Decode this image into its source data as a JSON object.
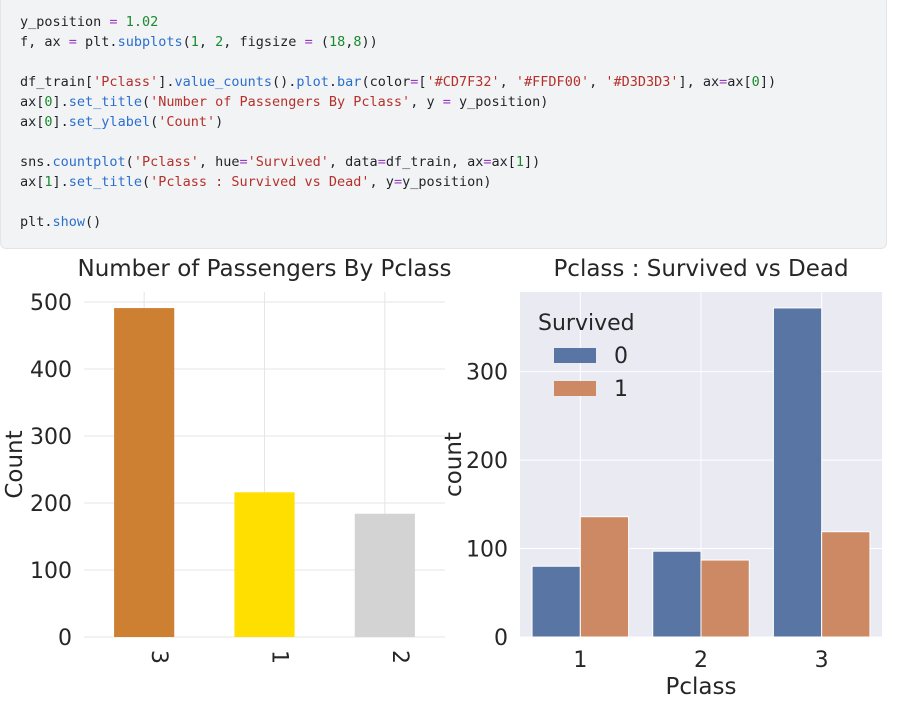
{
  "code": {
    "lines": [
      [
        [
          "y_position ",
          ""
        ],
        [
          "=",
          "op"
        ],
        [
          " ",
          ""
        ],
        [
          "1.02",
          "num"
        ]
      ],
      [
        [
          "f, ax ",
          ""
        ],
        [
          "=",
          "op"
        ],
        [
          " plt.",
          ""
        ],
        [
          "subplots",
          "fn"
        ],
        [
          "(",
          ""
        ],
        [
          "1",
          "num"
        ],
        [
          ", ",
          ""
        ],
        [
          "2",
          "num"
        ],
        [
          ", figsize ",
          ""
        ],
        [
          "=",
          "op"
        ],
        [
          " (",
          ""
        ],
        [
          "18",
          "num"
        ],
        [
          ",",
          ""
        ],
        [
          "8",
          "num"
        ],
        [
          "))",
          ""
        ]
      ],
      [],
      [
        [
          "df_train[",
          ""
        ],
        [
          "'Pclass'",
          "str"
        ],
        [
          "].",
          ""
        ],
        [
          "value_counts",
          "fn"
        ],
        [
          "().",
          ""
        ],
        [
          "plot",
          "fn"
        ],
        [
          ".",
          ""
        ],
        [
          "bar",
          "fn"
        ],
        [
          "(color",
          ""
        ],
        [
          "=",
          "op"
        ],
        [
          "[",
          ""
        ],
        [
          "'#CD7F32'",
          "str"
        ],
        [
          ", ",
          ""
        ],
        [
          "'#FFDF00'",
          "str"
        ],
        [
          ", ",
          ""
        ],
        [
          "'#D3D3D3'",
          "str"
        ],
        [
          "], ax",
          ""
        ],
        [
          "=",
          "op"
        ],
        [
          "ax[",
          ""
        ],
        [
          "0",
          "num"
        ],
        [
          "])",
          ""
        ]
      ],
      [
        [
          "ax[",
          ""
        ],
        [
          "0",
          "num"
        ],
        [
          "].",
          ""
        ],
        [
          "set_title",
          "fn"
        ],
        [
          "(",
          ""
        ],
        [
          "'Number of Passengers By Pclass'",
          "str"
        ],
        [
          ", y ",
          ""
        ],
        [
          "=",
          "op"
        ],
        [
          " y_position)",
          ""
        ]
      ],
      [
        [
          "ax[",
          ""
        ],
        [
          "0",
          "num"
        ],
        [
          "].",
          ""
        ],
        [
          "set_ylabel",
          "fn"
        ],
        [
          "(",
          ""
        ],
        [
          "'Count'",
          "str"
        ],
        [
          ")",
          ""
        ]
      ],
      [],
      [
        [
          "sns.",
          ""
        ],
        [
          "countplot",
          "fn"
        ],
        [
          "(",
          ""
        ],
        [
          "'Pclass'",
          "str"
        ],
        [
          ", hue",
          ""
        ],
        [
          "=",
          "op"
        ],
        [
          "'Survived'",
          "str"
        ],
        [
          ", data",
          ""
        ],
        [
          "=",
          "op"
        ],
        [
          "df_train, ax",
          ""
        ],
        [
          "=",
          "op"
        ],
        [
          "ax[",
          ""
        ],
        [
          "1",
          "num"
        ],
        [
          "])",
          ""
        ]
      ],
      [
        [
          "ax[",
          ""
        ],
        [
          "1",
          "num"
        ],
        [
          "].",
          ""
        ],
        [
          "set_title",
          "fn"
        ],
        [
          "(",
          ""
        ],
        [
          "'Pclass : Survived vs Dead'",
          "str"
        ],
        [
          ", y",
          ""
        ],
        [
          "=",
          "op"
        ],
        [
          "y_position)",
          ""
        ]
      ],
      [],
      [
        [
          "plt.",
          ""
        ],
        [
          "show",
          "fn"
        ],
        [
          "()",
          ""
        ]
      ]
    ]
  },
  "chart_data": [
    {
      "type": "bar",
      "title": "Number of Passengers By Pclass",
      "xlabel": "",
      "ylabel": "Count",
      "categories": [
        "3",
        "1",
        "2"
      ],
      "values": [
        491,
        216,
        184
      ],
      "colors": [
        "#CD7F32",
        "#FFDF00",
        "#D3D3D3"
      ],
      "yticks": [
        0,
        100,
        200,
        300,
        400,
        500
      ],
      "ylim": [
        0,
        515
      ],
      "grid": true,
      "xtick_rotation": 90
    },
    {
      "type": "bar",
      "title": "Pclass : Survived vs Dead",
      "xlabel": "Pclass",
      "ylabel": "count",
      "categories": [
        "1",
        "2",
        "3"
      ],
      "series": [
        {
          "name": "0",
          "values": [
            80,
            97,
            372
          ],
          "color": "#5875a4"
        },
        {
          "name": "1",
          "values": [
            136,
            87,
            119
          ],
          "color": "#cc8963"
        }
      ],
      "legend_title": "Survived",
      "legend_position": "top-left",
      "yticks": [
        0,
        100,
        200,
        300
      ],
      "ylim": [
        0,
        390
      ],
      "grid": true
    }
  ]
}
